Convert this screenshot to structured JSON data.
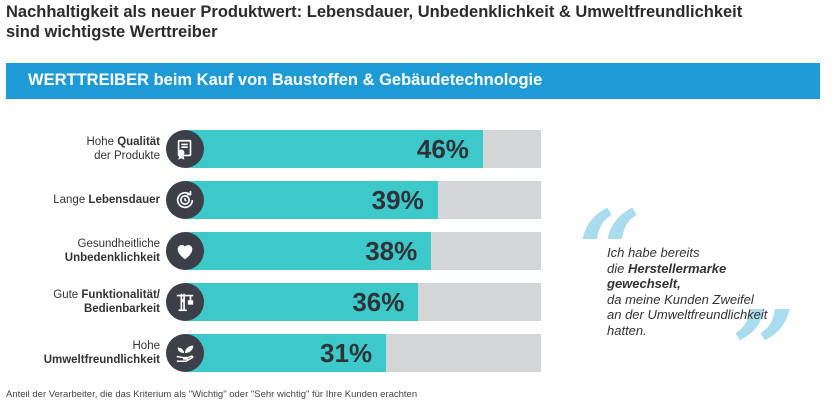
{
  "title": {
    "line1": "Nachhaltigkeit als neuer Produktwert: Lebensdauer, Unbedenklichkeit & Umweltfreundlichkeit",
    "line2": "sind wichtigste Werttreiber"
  },
  "banner": "WERTTREIBER beim Kauf von Baustoffen & Gebäudetechnologie",
  "chart_data": {
    "type": "bar",
    "orientation": "horizontal",
    "categories": [
      "Hohe Qualität der Produkte",
      "Lange Lebensdauer",
      "Gesundheitliche Unbedenklichkeit",
      "Gute Funktionalität/ Bedienbarkeit",
      "Hohe Umweltfreundlichkeit"
    ],
    "values": [
      46,
      39,
      38,
      36,
      31
    ],
    "value_labels": [
      "46%",
      "39%",
      "38%",
      "36%",
      "31%"
    ],
    "xlim": [
      0,
      55
    ],
    "unit": "%",
    "icons": [
      "certificate-icon",
      "clock-recycle-icon",
      "heart-icon",
      "crane-icon",
      "leaf-hand-icon"
    ],
    "label_parts": [
      {
        "plain": "Hohe ",
        "bold": "Qualität",
        "line2_plain": "der Produkte",
        "line2_bold": ""
      },
      {
        "plain": "Lange ",
        "bold": "Lebensdauer",
        "line2_plain": "",
        "line2_bold": ""
      },
      {
        "plain": "Gesundheitliche",
        "bold": "",
        "line2_plain": "",
        "line2_bold": "Unbedenklichkeit"
      },
      {
        "plain": "Gute ",
        "bold": "Funktionalität/",
        "line2_plain": "",
        "line2_bold": "Bedienbarkeit"
      },
      {
        "plain": "Hohe",
        "bold": "",
        "line2_plain": "",
        "line2_bold": "Umweltfreundlichkeit"
      }
    ]
  },
  "quote": {
    "line1": "Ich habe bereits",
    "line2_plain": "die ",
    "line2_bold": "Herstellermarke",
    "line3_bold": "gewechselt,",
    "line4": "da meine Kunden Zweifel",
    "line5": "an der Umweltfreundlichkeit",
    "line6": "hatten.",
    "open_mark": "“",
    "close_mark": "”"
  },
  "footnote": "Anteil der Verarbeiter, die das Kriterium als \"Wichtig\" oder \"Sehr wichtig\" für Ihre Kunden erachten",
  "colors": {
    "banner": "#1e9ad6",
    "bar_fill": "#3dc8c9",
    "bar_bg": "#d3d5d6",
    "icon_bg": "#3b3f47",
    "quote_marks": "#a9dcef"
  }
}
